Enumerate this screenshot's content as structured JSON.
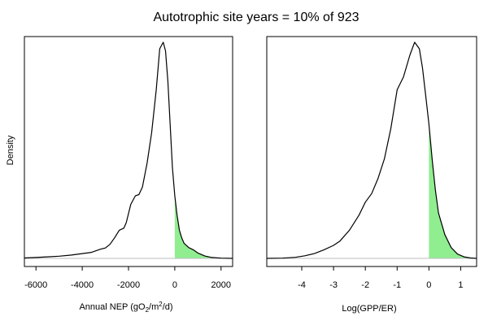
{
  "title": "Autotrophic site years = 10% of 923",
  "ylabel": "Density",
  "colors": {
    "fill": "#90ee90",
    "curve": "#000000",
    "baseline": "#bebebe",
    "frame": "#000000"
  },
  "chart_data": [
    {
      "type": "area",
      "xlabel": {
        "prefix": "Annual NEP (gO",
        "sub": "2",
        "mid": "/m",
        "sup": "2",
        "suffix": "/d)"
      },
      "ylabel": "Density",
      "xlim": [
        -6500,
        2500
      ],
      "ylim": [
        0,
        1
      ],
      "y_ticks_shown": false,
      "x_ticks": [
        -6000,
        -4000,
        -2000,
        0,
        2000
      ],
      "x_tick_labels": [
        "-6000",
        "-4000",
        "-2000",
        "0",
        "2000"
      ],
      "shade_from": 0,
      "x": [
        -6500,
        -6000,
        -5500,
        -5000,
        -4500,
        -4000,
        -3600,
        -3200,
        -3000,
        -2800,
        -2600,
        -2400,
        -2300,
        -2200,
        -2100,
        -1900,
        -1700,
        -1550,
        -1400,
        -1200,
        -1000,
        -800,
        -650,
        -500,
        -400,
        -300,
        -200,
        -100,
        0,
        100,
        200,
        300,
        400,
        600,
        800,
        1000,
        1300,
        1600,
        2000,
        2500
      ],
      "y": [
        0.002,
        0.004,
        0.007,
        0.01,
        0.015,
        0.022,
        0.028,
        0.043,
        0.048,
        0.065,
        0.095,
        0.13,
        0.135,
        0.14,
        0.165,
        0.25,
        0.29,
        0.295,
        0.33,
        0.44,
        0.58,
        0.78,
        0.97,
        1.0,
        0.96,
        0.82,
        0.62,
        0.42,
        0.29,
        0.2,
        0.13,
        0.095,
        0.07,
        0.05,
        0.04,
        0.025,
        0.011,
        0.004,
        0.001,
        0.0
      ]
    },
    {
      "type": "area",
      "xlabel": {
        "prefix": "Log(GPP/ER)",
        "sub": "",
        "mid": "",
        "sup": "",
        "suffix": ""
      },
      "xlim": [
        -5.1,
        1.5
      ],
      "ylim": [
        0,
        1
      ],
      "y_ticks_shown": false,
      "x_ticks": [
        -4,
        -3,
        -2,
        -1,
        0,
        1
      ],
      "x_tick_labels": [
        "-4",
        "-3",
        "-2",
        "-1",
        "0",
        "1"
      ],
      "shade_from": 0,
      "x": [
        -5.1,
        -4.6,
        -4.2,
        -3.9,
        -3.6,
        -3.3,
        -3.0,
        -2.8,
        -2.5,
        -2.2,
        -2.0,
        -1.8,
        -1.6,
        -1.4,
        -1.2,
        -1.0,
        -0.8,
        -0.6,
        -0.45,
        -0.3,
        -0.2,
        -0.1,
        0.0,
        0.1,
        0.2,
        0.3,
        0.5,
        0.7,
        0.9,
        1.1,
        1.3,
        1.5
      ],
      "y": [
        0.0,
        0.001,
        0.005,
        0.012,
        0.022,
        0.04,
        0.06,
        0.08,
        0.13,
        0.2,
        0.26,
        0.3,
        0.37,
        0.46,
        0.6,
        0.78,
        0.84,
        0.94,
        1.0,
        0.97,
        0.88,
        0.75,
        0.62,
        0.46,
        0.32,
        0.21,
        0.11,
        0.05,
        0.02,
        0.007,
        0.002,
        0.0
      ]
    }
  ]
}
